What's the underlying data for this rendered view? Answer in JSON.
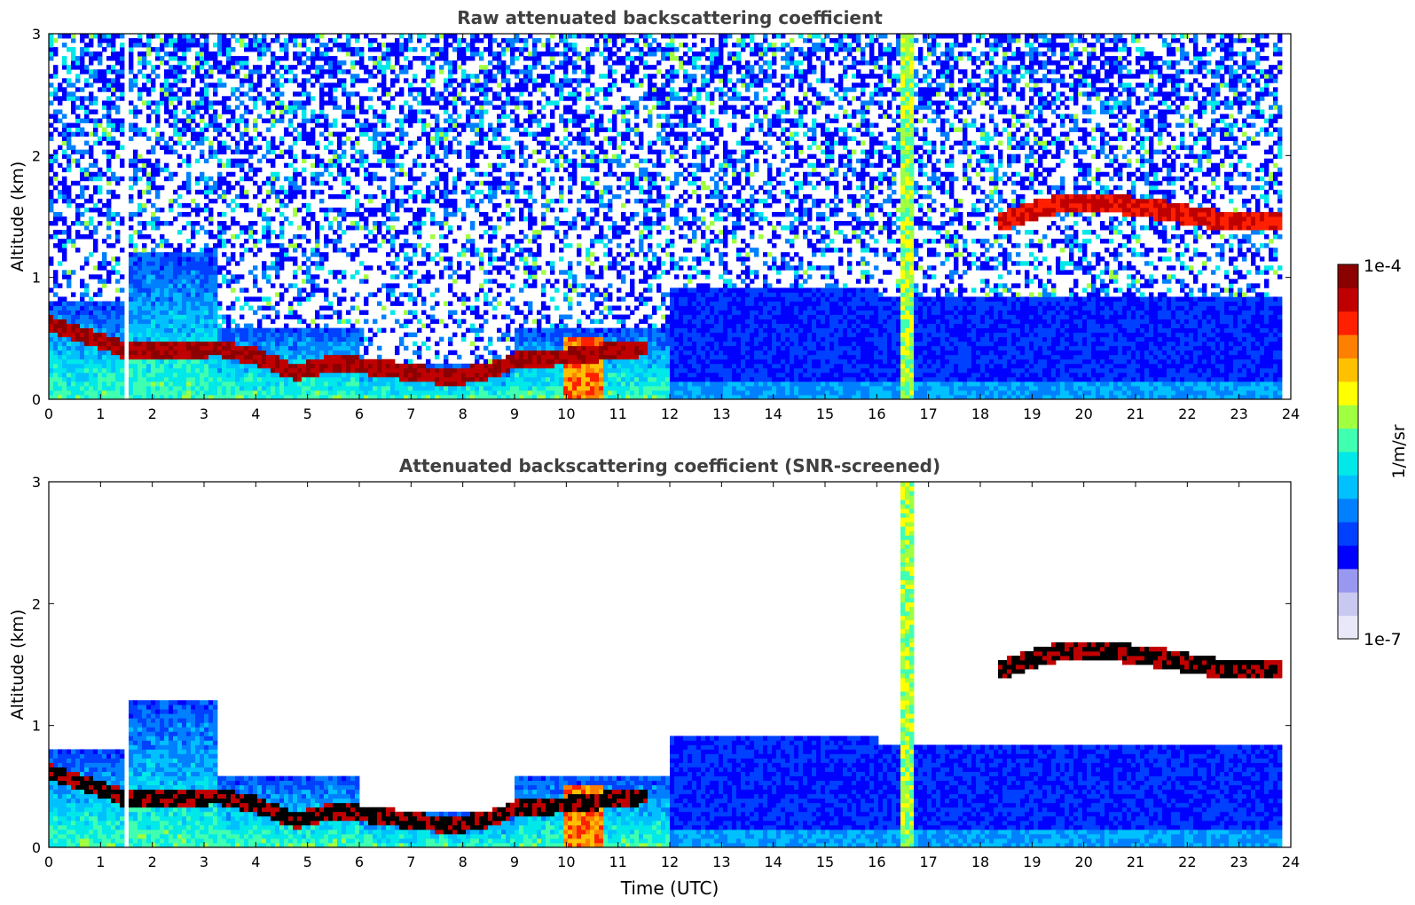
{
  "colors": {
    "colormap": [
      "#e8e8f8",
      "#c8c8f0",
      "#9898f0",
      "#0000ff",
      "#0040ff",
      "#0080ff",
      "#00c0ff",
      "#00e8e8",
      "#40ffb0",
      "#a0ff40",
      "#ffff00",
      "#ffc000",
      "#ff8000",
      "#ff2000",
      "#c00000",
      "#8b0000"
    ],
    "screened_thick_cloud": "#000000"
  },
  "colorbar": {
    "max_label": "1e-4",
    "min_label": "1e-7",
    "units_label": "1/m/sr",
    "scale": "log"
  },
  "chart_data": [
    {
      "type": "heatmap",
      "title": "Raw attenuated backscattering coefficient",
      "xlabel": "",
      "ylabel": "Altitude (km)",
      "xlim": [
        0,
        24
      ],
      "ylim": [
        0,
        3
      ],
      "xticks": [
        "0",
        "1",
        "2",
        "3",
        "4",
        "5",
        "6",
        "7",
        "8",
        "9",
        "10",
        "11",
        "12",
        "13",
        "14",
        "15",
        "16",
        "17",
        "18",
        "19",
        "20",
        "21",
        "22",
        "23",
        "24"
      ],
      "yticks": [
        "0",
        "1",
        "2",
        "3"
      ],
      "grid": false,
      "screened": false
    },
    {
      "type": "heatmap",
      "title": "Attenuated backscattering coefficient (SNR-screened)",
      "xlabel": "Time (UTC)",
      "ylabel": "Altitude (km)",
      "xlim": [
        0,
        24
      ],
      "ylim": [
        0,
        3
      ],
      "xticks": [
        "0",
        "1",
        "2",
        "3",
        "4",
        "5",
        "6",
        "7",
        "8",
        "9",
        "10",
        "11",
        "12",
        "13",
        "14",
        "15",
        "16",
        "17",
        "18",
        "19",
        "20",
        "21",
        "22",
        "23",
        "24"
      ],
      "yticks": [
        "0",
        "1",
        "2",
        "3"
      ],
      "grid": false,
      "screened": true
    }
  ],
  "features": {
    "cloud_base_track_km": [
      [
        0,
        0.62
      ],
      [
        0.5,
        0.55
      ],
      [
        1.2,
        0.45
      ],
      [
        1.5,
        0.4
      ],
      [
        3.3,
        0.42
      ],
      [
        4.0,
        0.35
      ],
      [
        4.8,
        0.22
      ],
      [
        5.5,
        0.3
      ],
      [
        6.0,
        0.28
      ],
      [
        7.0,
        0.22
      ],
      [
        7.8,
        0.18
      ],
      [
        8.6,
        0.24
      ],
      [
        9.0,
        0.32
      ],
      [
        10.0,
        0.35
      ],
      [
        11.0,
        0.4
      ],
      [
        11.5,
        0.42
      ]
    ],
    "upper_cloud_layer_km": [
      [
        18.3,
        1.44
      ],
      [
        19.0,
        1.55
      ],
      [
        19.5,
        1.6
      ],
      [
        20.0,
        1.62
      ],
      [
        20.5,
        1.62
      ],
      [
        21.0,
        1.58
      ],
      [
        21.6,
        1.55
      ],
      [
        22.2,
        1.5
      ],
      [
        22.8,
        1.46
      ],
      [
        23.8,
        1.46
      ]
    ],
    "missing_data_utc": [
      [
        1.42,
        1.55
      ],
      [
        23.8,
        24.0
      ]
    ],
    "high_aerosol_column_utc": [
      [
        16.45,
        16.72
      ]
    ]
  }
}
